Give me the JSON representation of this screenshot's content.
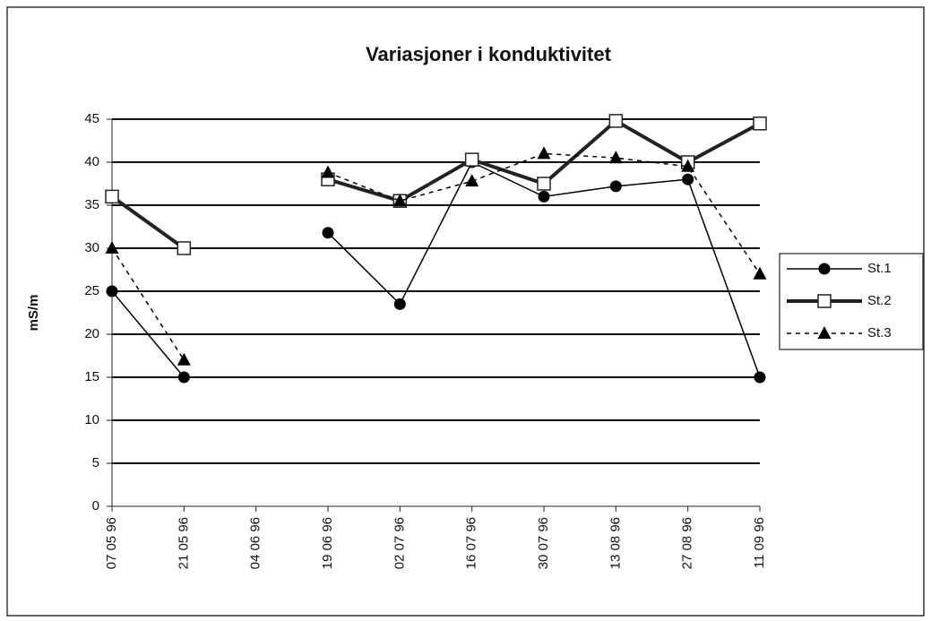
{
  "chart_data": {
    "type": "line",
    "title": "Variasjoner i konduktivitet",
    "y_label": "mS/m",
    "categories": [
      "07 05 96",
      "21 05 96",
      "04 06 96",
      "19 06 96",
      "02 07 96",
      "16 07 96",
      "30 07 96",
      "13 08 96",
      "27 08 96",
      "11 09 96"
    ],
    "series": [
      {
        "name": "St.1",
        "color": "#000000",
        "values": [
          25,
          15,
          null,
          31.8,
          23.5,
          40,
          36,
          37.2,
          38,
          15
        ]
      },
      {
        "name": "St.2",
        "color": "#222222",
        "values": [
          36,
          30,
          null,
          38,
          35.5,
          40.3,
          37.5,
          44.8,
          40,
          44.5
        ]
      },
      {
        "name": "St.3",
        "color": "#000000",
        "values": [
          30,
          17,
          null,
          38.8,
          35.5,
          37.8,
          41,
          40.5,
          39.5,
          27
        ]
      }
    ],
    "ylim": [
      0,
      45
    ],
    "yticks": [
      0,
      5,
      10,
      15,
      20,
      25,
      30,
      35,
      40,
      45
    ],
    "grid": true,
    "legend": "right"
  }
}
